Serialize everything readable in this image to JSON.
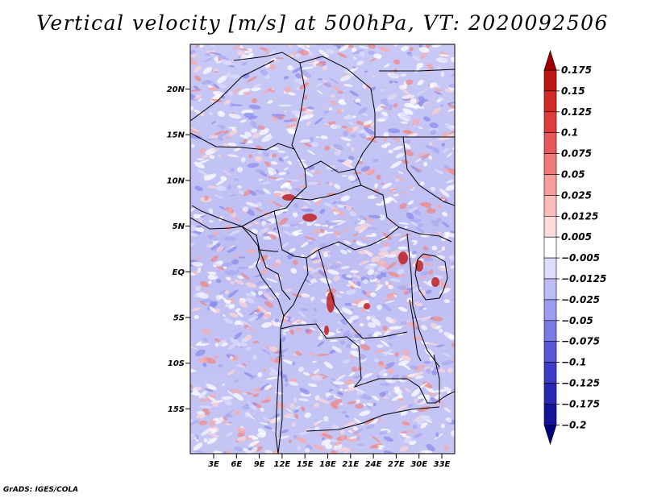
{
  "title": "Vertical velocity [m/s] at 500hPa, VT: 2020092506",
  "footer": "GrADS: IGES/COLA",
  "map": {
    "lat_labels": [
      "20N",
      "15N",
      "10N",
      "5N",
      "EQ",
      "5S",
      "10S",
      "15S"
    ],
    "lon_labels": [
      "3E",
      "6E",
      "9E",
      "12E",
      "15E",
      "18E",
      "21E",
      "24E",
      "27E",
      "30E",
      "33E"
    ]
  },
  "colorbar": {
    "levels": [
      "0.175",
      "0.15",
      "0.125",
      "0.1",
      "0.075",
      "0.05",
      "0.025",
      "0.0125",
      "0.005",
      "−0.005",
      "−0.0125",
      "−0.025",
      "−0.05",
      "−0.075",
      "−0.1",
      "−0.125",
      "−0.175",
      "−0.2"
    ],
    "colors": [
      "#a00000",
      "#be1414",
      "#d22828",
      "#e03c3c",
      "#e85858",
      "#f07a7a",
      "#f89c9c",
      "#fcbcbc",
      "#fedcdc",
      "#ffffff",
      "#dcdcfe",
      "#bcbcf8",
      "#9c9cf0",
      "#7a7ae6",
      "#5858d8",
      "#3c3cc8",
      "#2828b4",
      "#14149a",
      "#00007a"
    ]
  }
}
